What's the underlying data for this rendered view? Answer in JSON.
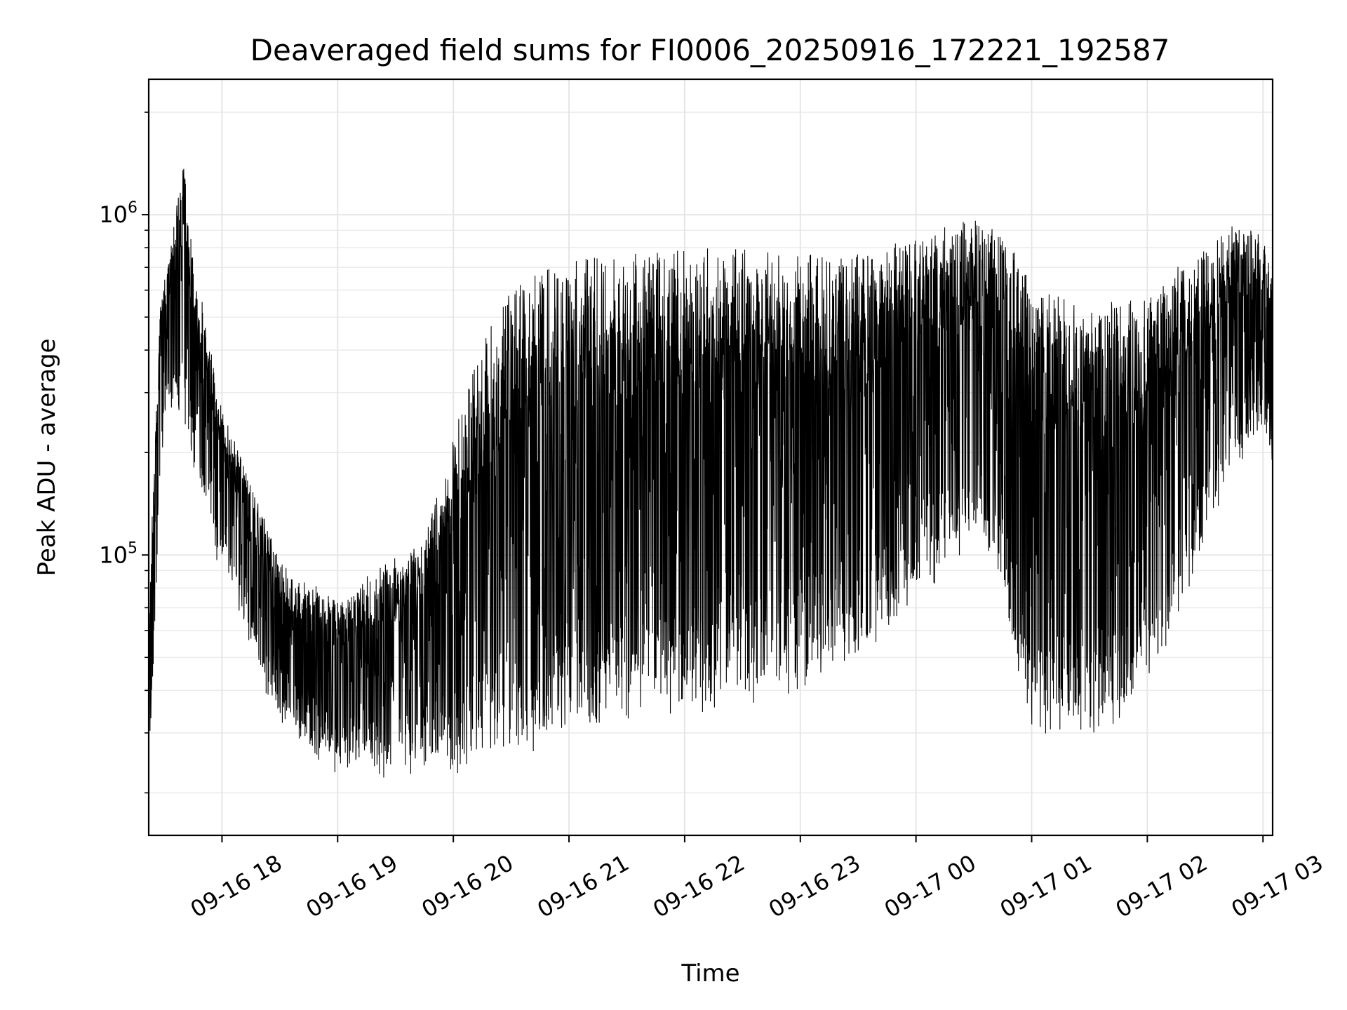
{
  "chart_data": {
    "type": "line",
    "title": "Deaveraged field sums for FI0006_20250916_172221_192587",
    "xlabel": "Time",
    "ylabel": "Peak ADU - average",
    "yscale": "log",
    "xlim": [
      "2025-09-16 17:22",
      "2025-09-17 03:05"
    ],
    "ylim": [
      15000,
      2500000
    ],
    "grid": "on (major and minor)",
    "line_color": "#000000",
    "x_ticks": [
      {
        "value": "2025-09-16 18:00",
        "label": "09-16 18"
      },
      {
        "value": "2025-09-16 19:00",
        "label": "09-16 19"
      },
      {
        "value": "2025-09-16 20:00",
        "label": "09-16 20"
      },
      {
        "value": "2025-09-16 21:00",
        "label": "09-16 21"
      },
      {
        "value": "2025-09-16 22:00",
        "label": "09-16 22"
      },
      {
        "value": "2025-09-16 23:00",
        "label": "09-16 23"
      },
      {
        "value": "2025-09-17 00:00",
        "label": "09-17 00"
      },
      {
        "value": "2025-09-17 01:00",
        "label": "09-17 01"
      },
      {
        "value": "2025-09-17 02:00",
        "label": "09-17 02"
      },
      {
        "value": "2025-09-17 03:00",
        "label": "09-17 03"
      }
    ],
    "y_ticks": [
      {
        "value": 100000,
        "base": "10",
        "exp": "5"
      },
      {
        "value": 1000000,
        "base": "10",
        "exp": "6"
      }
    ],
    "series": [
      {
        "x": [
          "2025-09-16 17:22",
          "2025-09-16 17:25",
          "2025-09-16 17:28",
          "2025-09-16 17:31",
          "2025-09-16 17:35",
          "2025-09-16 17:40",
          "2025-09-16 17:45",
          "2025-09-16 17:50",
          "2025-09-16 17:55",
          "2025-09-16 18:00",
          "2025-09-16 18:08",
          "2025-09-16 18:15",
          "2025-09-16 18:22",
          "2025-09-16 18:30",
          "2025-09-16 18:40",
          "2025-09-16 18:50",
          "2025-09-16 19:00",
          "2025-09-16 19:15",
          "2025-09-16 19:30",
          "2025-09-16 19:45",
          "2025-09-16 20:00",
          "2025-09-16 20:15",
          "2025-09-16 20:30",
          "2025-09-16 20:45",
          "2025-09-16 21:00",
          "2025-09-16 21:20",
          "2025-09-16 21:40",
          "2025-09-16 22:00",
          "2025-09-16 22:20",
          "2025-09-16 22:40",
          "2025-09-16 23:00",
          "2025-09-16 23:20",
          "2025-09-16 23:40",
          "2025-09-17 00:00",
          "2025-09-17 00:15",
          "2025-09-17 00:30",
          "2025-09-17 00:45",
          "2025-09-17 00:55",
          "2025-09-17 01:00",
          "2025-09-17 01:15",
          "2025-09-17 01:30",
          "2025-09-17 01:45",
          "2025-09-17 02:00",
          "2025-09-17 02:15",
          "2025-09-17 02:30",
          "2025-09-17 02:45",
          "2025-09-17 03:00",
          "2025-09-17 03:05"
        ],
        "y_peak": [
          60000,
          200000,
          500000,
          650000,
          900000,
          1300000,
          700000,
          500000,
          350000,
          250000,
          200000,
          150000,
          120000,
          90000,
          80000,
          75000,
          70000,
          80000,
          90000,
          100000,
          200000,
          350000,
          500000,
          550000,
          600000,
          620000,
          640000,
          650000,
          660000,
          650000,
          640000,
          630000,
          680000,
          750000,
          800000,
          850000,
          750000,
          600000,
          500000,
          480000,
          450000,
          470000,
          500000,
          600000,
          700000,
          850000,
          800000,
          600000
        ],
        "y_trough": [
          25000,
          60000,
          200000,
          300000,
          300000,
          250000,
          200000,
          150000,
          120000,
          100000,
          80000,
          60000,
          45000,
          35000,
          30000,
          28000,
          26000,
          26000,
          25000,
          25000,
          26000,
          27000,
          28000,
          30000,
          32000,
          34000,
          36000,
          38000,
          40000,
          42000,
          45000,
          50000,
          60000,
          80000,
          100000,
          120000,
          90000,
          40000,
          30000,
          30000,
          30000,
          35000,
          45000,
          70000,
          120000,
          200000,
          250000,
          180000
        ]
      }
    ]
  }
}
